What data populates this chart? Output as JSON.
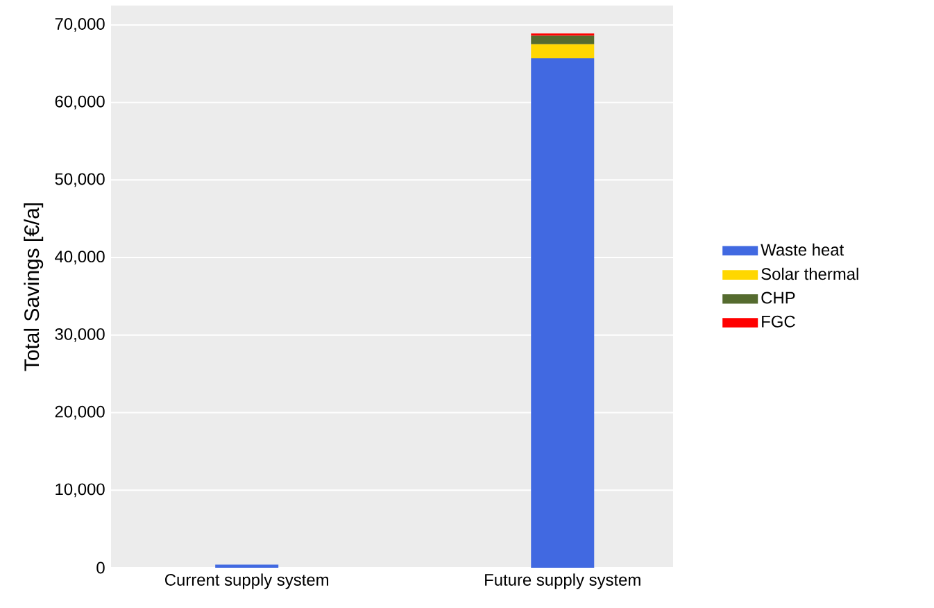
{
  "chart_data": {
    "type": "bar",
    "stacked": true,
    "ylabel": "Total Savings [€/a]",
    "categories": [
      "Current supply system",
      "Future supply system"
    ],
    "series": [
      {
        "name": "Waste heat",
        "color": "#4169e1",
        "values": [
          400,
          65700
        ]
      },
      {
        "name": "Solar thermal",
        "color": "#ffd700",
        "values": [
          0,
          1800
        ]
      },
      {
        "name": "CHP",
        "color": "#556b2f",
        "values": [
          0,
          1100
        ]
      },
      {
        "name": "FGC",
        "color": "#ff0000",
        "values": [
          0,
          300
        ]
      }
    ],
    "ylim": [
      0,
      72500
    ],
    "yticks": [
      {
        "value": 0,
        "label": "0"
      },
      {
        "value": 10000,
        "label": "10,000"
      },
      {
        "value": 20000,
        "label": "20,000"
      },
      {
        "value": 30000,
        "label": "30,000"
      },
      {
        "value": 40000,
        "label": "40,000"
      },
      {
        "value": 50000,
        "label": "50,000"
      },
      {
        "value": 60000,
        "label": "60,000"
      },
      {
        "value": 70000,
        "label": "70,000"
      }
    ],
    "grid": "y",
    "legend": "right"
  }
}
